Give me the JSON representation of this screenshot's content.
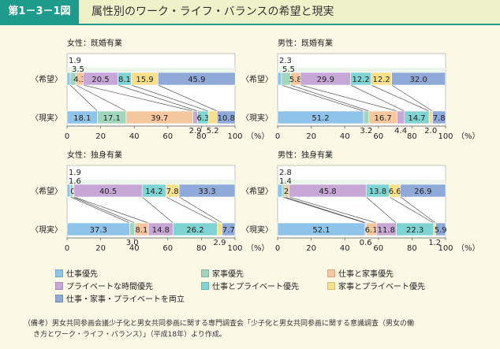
{
  "header": {
    "figure_label": "第1－3－1図",
    "title": "属性別のワーク・ライフ・バランスの希望と現実"
  },
  "colors": {
    "work": "#8fc3ea",
    "family": "#9fd6bc",
    "private": "#c7a7d6",
    "work_family": "#f4c79e",
    "work_private": "#7fd3d2",
    "family_private": "#f7e08c",
    "all_three": "#8fa9d8"
  },
  "legend": {
    "items": [
      {
        "key": "work",
        "label": "仕事優先"
      },
      {
        "key": "family",
        "label": "家事優先"
      },
      {
        "key": "work_family",
        "label": "仕事と家事優先"
      },
      {
        "key": "private",
        "label": "プライベートな時間優先"
      },
      {
        "key": "work_private",
        "label": "仕事とプライベート優先"
      },
      {
        "key": "family_private",
        "label": "家事とプライベート優先"
      },
      {
        "key": "all_three",
        "label": "仕事・家事・プライベートを両立"
      }
    ]
  },
  "note": {
    "line1": "（備考）男女共同参画会議少子化と男女共同参画に関する専門調査会「少子化と男女共同参画に関する意識調査（男女の働",
    "line2": "き方とワーク・ライフ・バランス）」（平成18年）より作成。"
  },
  "chart_data": [
    {
      "type": "bar",
      "title": "女性：既婚有業",
      "categories": [
        "〈希望〉",
        "〈現実〉"
      ],
      "x_ticks": [
        "0",
        "20",
        "40",
        "60",
        "80",
        "100"
      ],
      "unit": "（%）",
      "xlim": [
        0,
        100
      ],
      "series": [
        {
          "name": "仕事優先",
          "key": "work",
          "values": [
            1.9,
            18.1
          ]
        },
        {
          "name": "家事優先",
          "key": "family",
          "values": [
            3.5,
            17.1
          ]
        },
        {
          "name": "仕事と家事優先",
          "key": "work_family",
          "values": [
            4.3,
            39.7
          ]
        },
        {
          "name": "プライベートな時間優先",
          "key": "private",
          "values": [
            20.5,
            2.9
          ]
        },
        {
          "name": "仕事とプライベート優先",
          "key": "work_private",
          "values": [
            8.1,
            6.3
          ]
        },
        {
          "name": "家事とプライベート優先",
          "key": "family_private",
          "values": [
            15.9,
            5.2
          ]
        },
        {
          "name": "仕事・家事・プライベートを両立",
          "key": "all_three",
          "values": [
            45.9,
            10.8
          ]
        }
      ]
    },
    {
      "type": "bar",
      "title": "男性：既婚有業",
      "categories": [
        "〈希望〉",
        "〈現実〉"
      ],
      "x_ticks": [
        "0",
        "20",
        "40",
        "60",
        "80",
        "100"
      ],
      "unit": "（%）",
      "xlim": [
        0,
        100
      ],
      "series": [
        {
          "name": "仕事優先",
          "key": "work",
          "values": [
            2.3,
            51.2
          ]
        },
        {
          "name": "家事優先",
          "key": "family",
          "values": [
            5.5,
            3.2
          ]
        },
        {
          "name": "仕事と家事優先",
          "key": "work_family",
          "values": [
            5.8,
            16.7
          ]
        },
        {
          "name": "プライベートな時間優先",
          "key": "private",
          "values": [
            29.9,
            4.4
          ]
        },
        {
          "name": "仕事とプライベート優先",
          "key": "work_private",
          "values": [
            12.2,
            14.7
          ]
        },
        {
          "name": "家事とプライベート優先",
          "key": "family_private",
          "values": [
            12.2,
            2.0
          ]
        },
        {
          "name": "仕事・家事・プライベートを両立",
          "key": "all_three",
          "values": [
            32.0,
            7.8
          ]
        }
      ]
    },
    {
      "type": "bar",
      "title": "女性：独身有業",
      "categories": [
        "〈希望〉",
        "〈現実〉"
      ],
      "x_ticks": [
        "0",
        "20",
        "40",
        "60",
        "80",
        "100"
      ],
      "unit": "（%）",
      "xlim": [
        0,
        100
      ],
      "series": [
        {
          "name": "仕事優先",
          "key": "work",
          "values": [
            1.9,
            37.3
          ]
        },
        {
          "name": "家事優先",
          "key": "family",
          "values": [
            1.6,
            3.0
          ]
        },
        {
          "name": "仕事と家事優先",
          "key": "work_family",
          "values": [
            0.7,
            8.1
          ]
        },
        {
          "name": "プライベートな時間優先",
          "key": "private",
          "values": [
            40.5,
            14.8
          ]
        },
        {
          "name": "仕事とプライベート優先",
          "key": "work_private",
          "values": [
            14.2,
            26.2
          ]
        },
        {
          "name": "家事とプライベート優先",
          "key": "family_private",
          "values": [
            7.8,
            2.9
          ]
        },
        {
          "name": "仕事・家事・プライベートを両立",
          "key": "all_three",
          "values": [
            33.3,
            7.7
          ]
        }
      ]
    },
    {
      "type": "bar",
      "title": "男性：独身有業",
      "categories": [
        "〈希望〉",
        "〈現実〉"
      ],
      "x_ticks": [
        "0",
        "20",
        "40",
        "60",
        "80",
        "100"
      ],
      "unit": "（%）",
      "xlim": [
        0,
        100
      ],
      "series": [
        {
          "name": "仕事優先",
          "key": "work",
          "values": [
            2.8,
            52.1
          ]
        },
        {
          "name": "家事優先",
          "key": "family",
          "values": [
            1.4,
            0.6
          ]
        },
        {
          "name": "仕事と家事優先",
          "key": "work_family",
          "values": [
            2.7,
            6.1
          ]
        },
        {
          "name": "プライベートな時間優先",
          "key": "private",
          "values": [
            45.8,
            11.8
          ]
        },
        {
          "name": "仕事とプライベート優先",
          "key": "work_private",
          "values": [
            13.8,
            22.3
          ]
        },
        {
          "name": "家事とプライベート優先",
          "key": "family_private",
          "values": [
            6.6,
            1.2
          ]
        },
        {
          "name": "仕事・家事・プライベートを両立",
          "key": "all_three",
          "values": [
            26.9,
            5.9
          ]
        }
      ]
    }
  ]
}
